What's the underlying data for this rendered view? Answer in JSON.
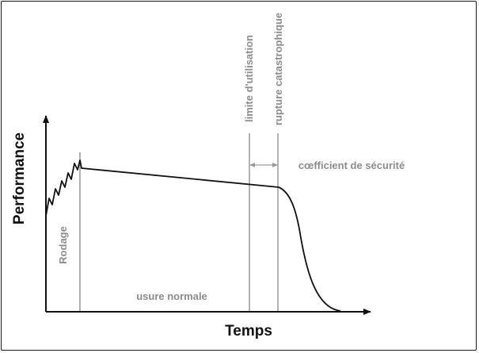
{
  "diagram": {
    "axes": {
      "y_label": "Performance",
      "x_label": "Temps"
    },
    "phases": {
      "break_in": "Rodage",
      "normal_wear": "usure normale"
    },
    "markers": {
      "usage_limit": "limite d'utilisation",
      "catastrophic_failure": "rupture catastrophique"
    },
    "safety_margin": "cœfficient de sécurité"
  },
  "colors": {
    "curve": "#111111",
    "guide_lines": "#9a9a9a",
    "gray_text": "#8c8c8c"
  }
}
